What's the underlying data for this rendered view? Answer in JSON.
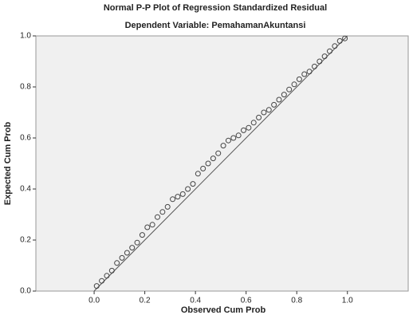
{
  "chart_data": {
    "type": "scatter",
    "title": "Normal P-P Plot of Regression Standardized Residual",
    "subtitle": "Dependent Variable: PemahamanAkuntansi",
    "x_label": "Observed Cum Prob",
    "y_label": "Expected Cum Prob",
    "x": [
      0.01,
      0.03,
      0.05,
      0.07,
      0.09,
      0.11,
      0.13,
      0.15,
      0.17,
      0.19,
      0.21,
      0.23,
      0.25,
      0.27,
      0.29,
      0.31,
      0.33,
      0.35,
      0.37,
      0.39,
      0.41,
      0.43,
      0.45,
      0.47,
      0.49,
      0.51,
      0.53,
      0.55,
      0.57,
      0.59,
      0.61,
      0.63,
      0.65,
      0.67,
      0.69,
      0.71,
      0.73,
      0.75,
      0.77,
      0.79,
      0.81,
      0.83,
      0.85,
      0.87,
      0.89,
      0.91,
      0.93,
      0.95,
      0.97,
      0.99
    ],
    "series": [
      {
        "color": "#444444",
        "values": [
          0.02,
          0.04,
          0.06,
          0.08,
          0.11,
          0.13,
          0.15,
          0.17,
          0.19,
          0.22,
          0.25,
          0.26,
          0.29,
          0.31,
          0.33,
          0.36,
          0.37,
          0.38,
          0.4,
          0.42,
          0.46,
          0.48,
          0.5,
          0.52,
          0.54,
          0.57,
          0.59,
          0.6,
          0.61,
          0.63,
          0.64,
          0.66,
          0.68,
          0.7,
          0.71,
          0.73,
          0.75,
          0.77,
          0.79,
          0.81,
          0.83,
          0.85,
          0.86,
          0.88,
          0.9,
          0.92,
          0.94,
          0.96,
          0.98,
          0.99
        ]
      }
    ],
    "xlim": [
      -0.23,
      1.24
    ],
    "ylim": [
      0,
      1
    ],
    "xticks": [
      {
        "value": 0,
        "label": "0.0"
      },
      0.2,
      0.4,
      0.6,
      0.8,
      {
        "value": 1,
        "label": "1.0"
      }
    ],
    "yticks": [
      {
        "value": 0,
        "label": "0.0"
      },
      0.2,
      0.4,
      0.6,
      0.8,
      {
        "value": 1,
        "label": "1.0"
      }
    ],
    "diagonal": true,
    "background": "#f0f0f0"
  }
}
